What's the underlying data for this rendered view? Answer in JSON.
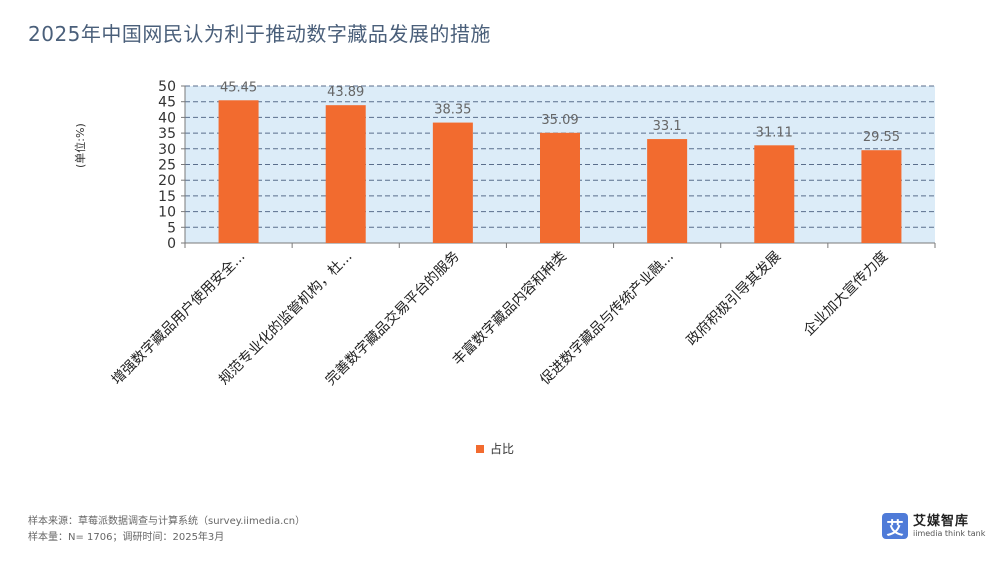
{
  "title": "2025年中国网民认为利于推动数字藏品发展的措施",
  "chart_data": {
    "type": "bar",
    "categories": [
      "增强数字藏品用户使用安全...",
      "规范专业化的监管机构，杜...",
      "完善数字藏品交易平台的服务",
      "丰富数字藏品内容和种类",
      "促进数字藏品与传统产业融...",
      "政府积极引导其发展",
      "企业加大宣传力度"
    ],
    "series": [
      {
        "name": "占比",
        "values": [
          45.45,
          43.89,
          38.35,
          35.09,
          33.1,
          31.11,
          29.55
        ]
      }
    ],
    "value_labels": [
      "45.45",
      "43.89",
      "38.35",
      "35.09",
      "33.1",
      "31.11",
      "29.55"
    ],
    "ylabel": "(单位:%)",
    "ylim": [
      0,
      50
    ],
    "yticks": [
      0,
      5,
      10,
      15,
      20,
      25,
      30,
      35,
      40,
      45,
      50
    ],
    "grid": true,
    "legend_position": "bottom",
    "colors": {
      "bar": "#f26b2f",
      "plot_bg": "#dcecf8",
      "grid": "#5a6e8c",
      "axis": "#7a7a7a"
    }
  },
  "footer": {
    "source": "样本来源：草莓派数据调查与计算系统（survey.iimedia.cn）",
    "sample": "样本量：N= 1706；调研时间：2025年3月"
  },
  "logo": {
    "mark": "艾",
    "name": "艾媒智库",
    "subtitle": "iimedia think tank"
  }
}
